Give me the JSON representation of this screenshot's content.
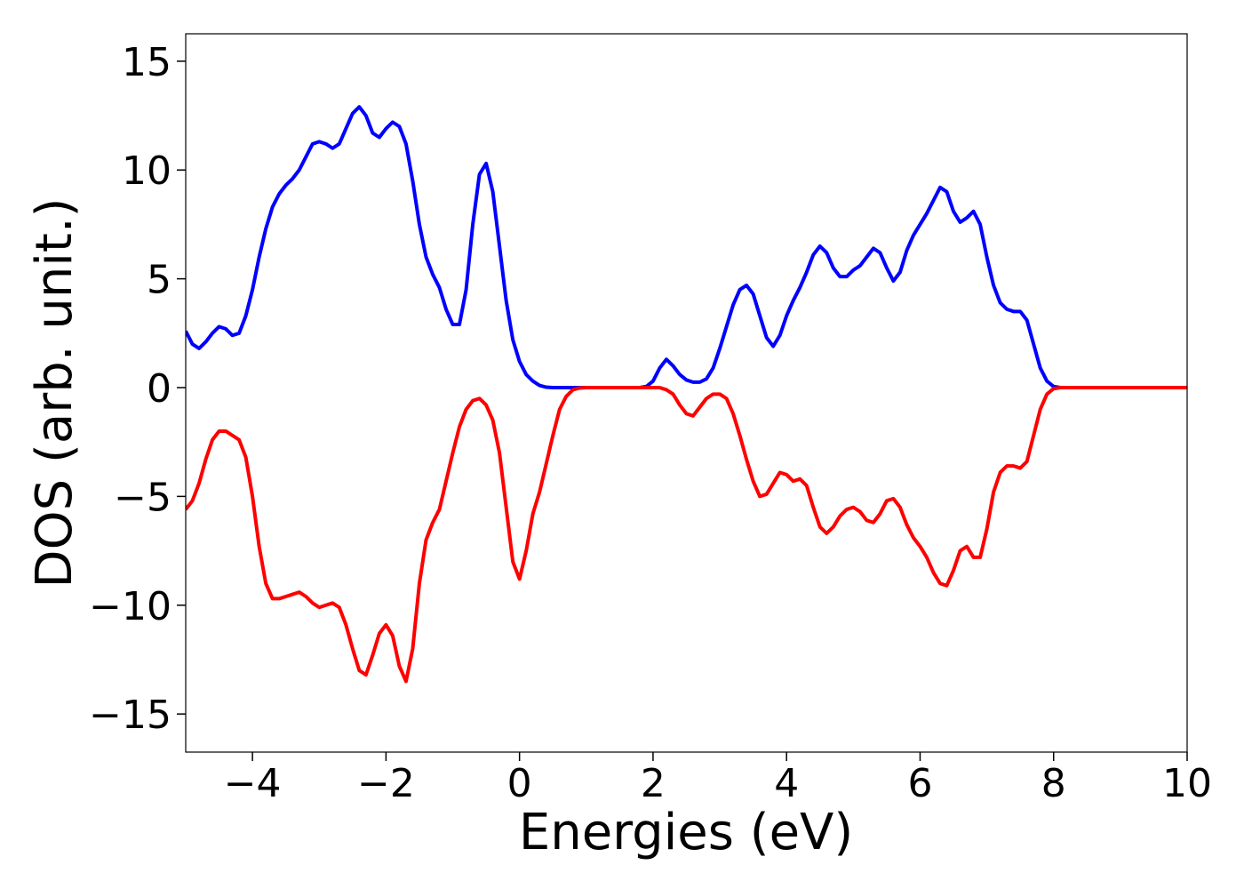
{
  "chart_data": {
    "type": "line",
    "x_label": "Energies (eV)",
    "y_label": "DOS (arb. unit.)",
    "x": [
      -5.0,
      -4.9,
      -4.8,
      -4.7,
      -4.6,
      -4.5,
      -4.4,
      -4.3,
      -4.2,
      -4.1,
      -4.0,
      -3.9,
      -3.8,
      -3.7,
      -3.6,
      -3.5,
      -3.4,
      -3.3,
      -3.2,
      -3.1,
      -3.0,
      -2.9,
      -2.8,
      -2.7,
      -2.6,
      -2.5,
      -2.4,
      -2.3,
      -2.2,
      -2.1,
      -2.0,
      -1.9,
      -1.8,
      -1.7,
      -1.6,
      -1.5,
      -1.4,
      -1.3,
      -1.2,
      -1.1,
      -1.0,
      -0.9,
      -0.8,
      -0.7,
      -0.6,
      -0.5,
      -0.4,
      -0.3,
      -0.2,
      -0.1,
      0.0,
      0.1,
      0.2,
      0.3,
      0.4,
      0.5,
      0.6,
      0.7,
      0.8,
      0.9,
      1.0,
      1.1,
      1.2,
      1.3,
      1.4,
      1.5,
      1.6,
      1.7,
      1.8,
      1.9,
      2.0,
      2.1,
      2.2,
      2.3,
      2.4,
      2.5,
      2.6,
      2.7,
      2.8,
      2.9,
      3.0,
      3.1,
      3.2,
      3.3,
      3.4,
      3.5,
      3.6,
      3.7,
      3.8,
      3.9,
      4.0,
      4.1,
      4.2,
      4.3,
      4.4,
      4.5,
      4.6,
      4.7,
      4.8,
      4.9,
      5.0,
      5.1,
      5.2,
      5.3,
      5.4,
      5.5,
      5.6,
      5.7,
      5.8,
      5.9,
      6.0,
      6.1,
      6.2,
      6.3,
      6.4,
      6.5,
      6.6,
      6.7,
      6.8,
      6.9,
      7.0,
      7.1,
      7.2,
      7.3,
      7.4,
      7.5,
      7.6,
      7.7,
      7.8,
      7.9,
      8.0,
      8.1,
      8.2,
      8.3,
      8.4,
      8.5,
      8.6,
      8.7,
      8.8,
      8.9,
      9.0,
      9.1,
      9.2,
      9.3,
      9.4,
      9.5,
      9.6,
      9.7,
      9.8,
      9.9,
      10.0
    ],
    "series": [
      {
        "color": "#0000ff",
        "values": [
          2.6,
          2.0,
          1.8,
          2.1,
          2.5,
          2.8,
          2.7,
          2.4,
          2.5,
          3.3,
          4.5,
          6.0,
          7.3,
          8.3,
          8.9,
          9.3,
          9.6,
          10.0,
          10.6,
          11.2,
          11.3,
          11.2,
          11.0,
          11.2,
          11.9,
          12.6,
          12.9,
          12.5,
          11.7,
          11.5,
          11.9,
          12.2,
          12.0,
          11.2,
          9.5,
          7.5,
          6.0,
          5.2,
          4.6,
          3.6,
          2.9,
          2.9,
          4.5,
          7.5,
          9.8,
          10.3,
          9.0,
          6.5,
          4.0,
          2.2,
          1.2,
          0.6,
          0.3,
          0.1,
          0.02,
          0,
          0,
          0,
          0,
          0,
          0,
          0,
          0,
          0,
          0,
          0,
          0,
          0,
          0,
          0.05,
          0.3,
          0.9,
          1.3,
          1.0,
          0.6,
          0.35,
          0.25,
          0.25,
          0.4,
          0.9,
          1.8,
          2.8,
          3.8,
          4.5,
          4.7,
          4.3,
          3.3,
          2.3,
          1.9,
          2.4,
          3.3,
          4.0,
          4.6,
          5.3,
          6.1,
          6.5,
          6.2,
          5.5,
          5.1,
          5.1,
          5.4,
          5.6,
          6.0,
          6.4,
          6.2,
          5.5,
          4.9,
          5.3,
          6.3,
          7.0,
          7.5,
          8.0,
          8.6,
          9.2,
          9.0,
          8.1,
          7.6,
          7.8,
          8.1,
          7.5,
          6.0,
          4.7,
          3.9,
          3.6,
          3.5,
          3.5,
          3.1,
          2.0,
          0.9,
          0.3,
          0.05,
          0,
          0,
          0,
          0,
          0,
          0,
          0,
          0,
          0,
          0,
          0,
          0,
          0,
          0,
          0,
          0,
          0,
          0,
          0,
          0
        ]
      },
      {
        "color": "#ff0000",
        "values": [
          -5.6,
          -5.2,
          -4.4,
          -3.3,
          -2.4,
          -2.0,
          -2.0,
          -2.2,
          -2.4,
          -3.2,
          -5.0,
          -7.3,
          -9.0,
          -9.7,
          -9.7,
          -9.6,
          -9.5,
          -9.4,
          -9.6,
          -9.9,
          -10.1,
          -10.0,
          -9.9,
          -10.1,
          -10.9,
          -12.0,
          -13.0,
          -13.2,
          -12.3,
          -11.3,
          -10.9,
          -11.4,
          -12.8,
          -13.5,
          -12.0,
          -9.0,
          -7.0,
          -6.2,
          -5.6,
          -4.3,
          -3.0,
          -1.8,
          -1.0,
          -0.6,
          -0.5,
          -0.8,
          -1.5,
          -3.0,
          -5.5,
          -8.0,
          -8.8,
          -7.5,
          -5.8,
          -4.8,
          -3.5,
          -2.2,
          -1.0,
          -0.4,
          -0.1,
          -0.02,
          0,
          0,
          0,
          0,
          0,
          0,
          0,
          0,
          0,
          0,
          0,
          0,
          -0.1,
          -0.3,
          -0.8,
          -1.2,
          -1.3,
          -0.9,
          -0.5,
          -0.3,
          -0.3,
          -0.5,
          -1.2,
          -2.2,
          -3.3,
          -4.3,
          -5.0,
          -4.9,
          -4.4,
          -3.9,
          -4.0,
          -4.3,
          -4.2,
          -4.5,
          -5.5,
          -6.4,
          -6.7,
          -6.4,
          -5.9,
          -5.6,
          -5.5,
          -5.7,
          -6.1,
          -6.2,
          -5.8,
          -5.2,
          -5.1,
          -5.5,
          -6.3,
          -6.9,
          -7.3,
          -7.8,
          -8.5,
          -9.0,
          -9.1,
          -8.4,
          -7.5,
          -7.3,
          -7.8,
          -7.8,
          -6.5,
          -4.8,
          -3.9,
          -3.6,
          -3.6,
          -3.7,
          -3.4,
          -2.2,
          -1.0,
          -0.3,
          -0.05,
          0,
          0,
          0,
          0,
          0,
          0,
          0,
          0,
          0,
          0,
          0,
          0,
          0,
          0,
          0,
          0,
          0,
          0,
          0,
          0
        ]
      }
    ],
    "xlim": [
      -5,
      10
    ],
    "ylim": [
      -16.75,
      16.26
    ],
    "xticks": [
      {
        "value": -4,
        "label": "−4"
      },
      {
        "value": -2,
        "label": "−2"
      },
      0,
      2,
      4,
      6,
      8,
      10
    ],
    "yticks": [
      {
        "value": -15,
        "label": "−15"
      },
      {
        "value": -10,
        "label": "−10"
      },
      {
        "value": -5,
        "label": "−5"
      },
      0,
      5,
      10,
      15
    ]
  }
}
